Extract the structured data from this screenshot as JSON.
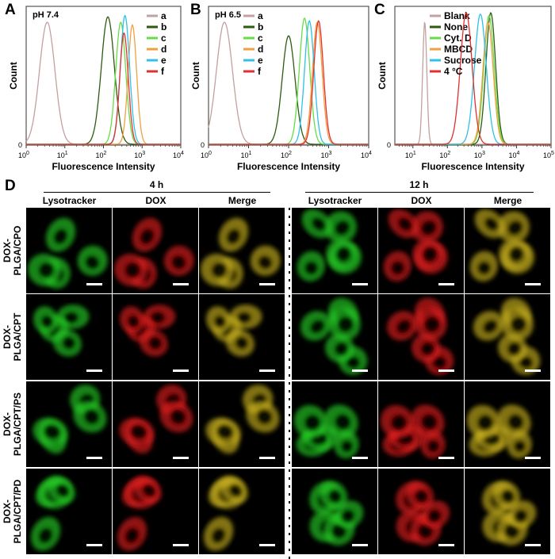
{
  "panels": {
    "A": "A",
    "B": "B",
    "C": "C",
    "D": "D"
  },
  "chart_data": [
    {
      "type": "line",
      "panel": "A",
      "title": "pH 7.4",
      "xlabel": "Fluorescence Intensity",
      "ylabel": "Count",
      "xscale": "log",
      "xlim": [
        1,
        10000
      ],
      "xticks": [
        "10^0",
        "10^1",
        "10^2",
        "10^3",
        "10^4"
      ],
      "ytick": "0",
      "legend": "top-right",
      "series": [
        {
          "name": "a",
          "color": "#c4a0a0",
          "peak": 3.5,
          "rel_height": 0.9,
          "width": 0.2
        },
        {
          "name": "b",
          "color": "#2e5a12",
          "peak": 130,
          "rel_height": 0.94,
          "width": 0.17
        },
        {
          "name": "c",
          "color": "#66dd44",
          "peak": 280,
          "rel_height": 0.9,
          "width": 0.13
        },
        {
          "name": "d",
          "color": "#f0a040",
          "peak": 560,
          "rel_height": 0.88,
          "width": 0.11
        },
        {
          "name": "e",
          "color": "#30c0e8",
          "peak": 360,
          "rel_height": 0.95,
          "width": 0.12
        },
        {
          "name": "f",
          "color": "#e03030",
          "peak": 340,
          "rel_height": 0.82,
          "width": 0.11
        }
      ]
    },
    {
      "type": "line",
      "panel": "B",
      "title": "pH 6.5",
      "xlabel": "Fluorescence Intensity",
      "ylabel": "Count",
      "xscale": "log",
      "xlim": [
        1,
        10000
      ],
      "xticks": [
        "10^0",
        "10^1",
        "10^2",
        "10^3",
        "10^4"
      ],
      "ytick": "0",
      "legend": "top-right",
      "series": [
        {
          "name": "a",
          "color": "#c4a0a0",
          "peak": 2.5,
          "rel_height": 0.9,
          "width": 0.2
        },
        {
          "name": "b",
          "color": "#2e5a12",
          "peak": 100,
          "rel_height": 0.8,
          "width": 0.16
        },
        {
          "name": "c",
          "color": "#66dd44",
          "peak": 250,
          "rel_height": 0.93,
          "width": 0.13
        },
        {
          "name": "d",
          "color": "#f0a040",
          "peak": 520,
          "rel_height": 0.9,
          "width": 0.12
        },
        {
          "name": "e",
          "color": "#30c0e8",
          "peak": 330,
          "rel_height": 0.91,
          "width": 0.12
        },
        {
          "name": "f",
          "color": "#e03030",
          "peak": 560,
          "rel_height": 0.91,
          "width": 0.12
        }
      ]
    },
    {
      "type": "line",
      "panel": "C",
      "title": "",
      "xlabel": "Fluorescence Intensity",
      "ylabel": "Count",
      "xscale": "log",
      "xlim": [
        3,
        100000
      ],
      "xticks": [
        "10^1",
        "10^2",
        "10^3",
        "10^4",
        "10^5"
      ],
      "ytick": "0",
      "legend": "top-right",
      "series": [
        {
          "name": "Blank",
          "color": "#c4a0a0",
          "peak": 22,
          "rel_height": 0.9,
          "width": 0.06
        },
        {
          "name": "None",
          "color": "#2e5a12",
          "peak": 1800,
          "rel_height": 0.97,
          "width": 0.14
        },
        {
          "name": "Cyt. D",
          "color": "#66dd44",
          "peak": 1600,
          "rel_height": 0.95,
          "width": 0.15
        },
        {
          "name": "MBCD",
          "color": "#f0a040",
          "peak": 1500,
          "rel_height": 0.9,
          "width": 0.15
        },
        {
          "name": "Sucrose",
          "color": "#30c0e8",
          "peak": 900,
          "rel_height": 0.96,
          "width": 0.17
        },
        {
          "name": "4 °C",
          "color": "#e03030",
          "peak": 350,
          "rel_height": 0.97,
          "width": 0.17
        }
      ]
    }
  ],
  "imaging": {
    "groups": [
      {
        "time": "4 h"
      },
      {
        "time": "12 h"
      }
    ],
    "columns": [
      "Lysotracker",
      "DOX",
      "Merge"
    ],
    "rows": [
      {
        "line1": "DOX-",
        "line2": "PLGA/CPO"
      },
      {
        "line1": "DOX-",
        "line2": "PLGA/CPT"
      },
      {
        "line1": "DOX-",
        "line2": "PLGA/CPT/PS"
      },
      {
        "line1": "DOX-",
        "line2": "PLGA/CPT/PD"
      }
    ],
    "channel_colors": {
      "Lysotracker": "#22cc22",
      "DOX": "#dd1a1a",
      "Merge": "#c8b020"
    }
  }
}
